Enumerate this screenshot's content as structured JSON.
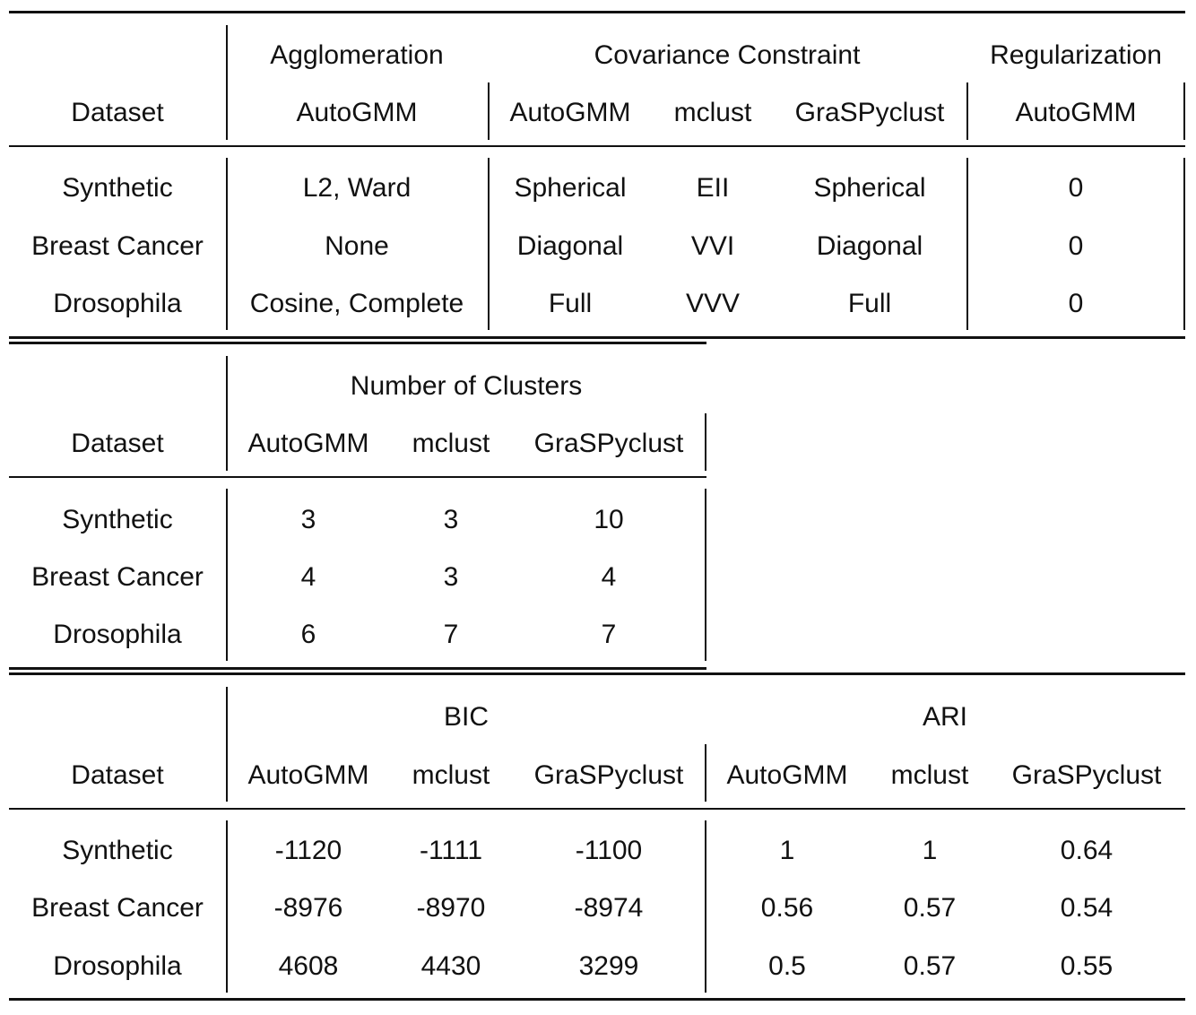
{
  "table1": {
    "group_headers": [
      "Agglomeration",
      "Covariance Constraint",
      "Regularization"
    ],
    "col_headers": [
      "Dataset",
      "AutoGMM",
      "AutoGMM",
      "mclust",
      "GraSPyclust",
      "AutoGMM"
    ],
    "rows": [
      [
        "Synthetic",
        "L2, Ward",
        "Spherical",
        "EII",
        "Spherical",
        "0"
      ],
      [
        "Breast Cancer",
        "None",
        "Diagonal",
        "VVI",
        "Diagonal",
        "0"
      ],
      [
        "Drosophila",
        "Cosine, Complete",
        "Full",
        "VVV",
        "Full",
        "0"
      ]
    ]
  },
  "table2": {
    "group_headers": [
      "Number of Clusters"
    ],
    "col_headers": [
      "Dataset",
      "AutoGMM",
      "mclust",
      "GraSPyclust"
    ],
    "rows": [
      [
        "Synthetic",
        "3",
        "3",
        "10"
      ],
      [
        "Breast Cancer",
        "4",
        "3",
        "4"
      ],
      [
        "Drosophila",
        "6",
        "7",
        "7"
      ]
    ]
  },
  "table3": {
    "group_headers": [
      "BIC",
      "ARI"
    ],
    "col_headers": [
      "Dataset",
      "AutoGMM",
      "mclust",
      "GraSPyclust",
      "AutoGMM",
      "mclust",
      "GraSPyclust"
    ],
    "rows": [
      [
        "Synthetic",
        "-1120",
        "-1111",
        "-1100",
        "1",
        "1",
        "0.64"
      ],
      [
        "Breast Cancer",
        "-8976",
        "-8970",
        "-8974",
        "0.56",
        "0.57",
        "0.54"
      ],
      [
        "Drosophila",
        "4608",
        "4430",
        "3299",
        "0.5",
        "0.57",
        "0.55"
      ]
    ]
  }
}
